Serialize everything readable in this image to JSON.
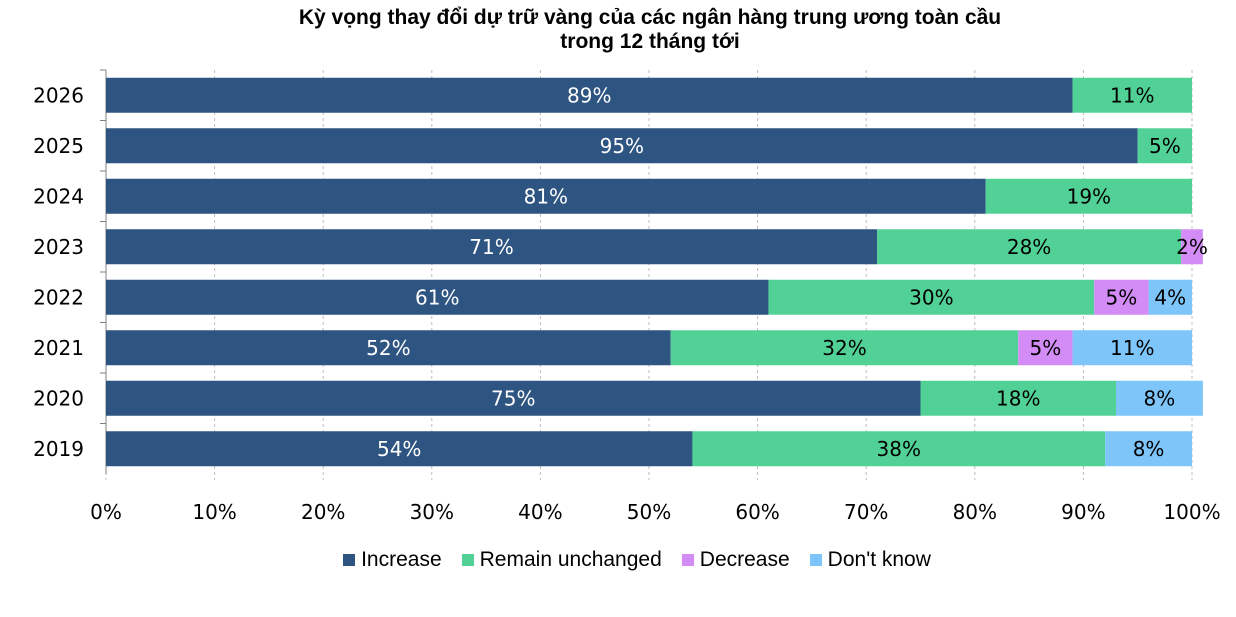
{
  "chart_data": {
    "type": "bar",
    "orientation": "horizontal",
    "stacked": true,
    "title_line1": "Kỳ vọng thay đổi dự trữ vàng của các ngân hàng trung ương toàn cầu",
    "title_line2": "trong 12 tháng tới",
    "xlabel": "",
    "ylabel": "",
    "xlim": [
      0,
      100
    ],
    "x_ticks": [
      "0%",
      "10%",
      "20%",
      "30%",
      "40%",
      "50%",
      "60%",
      "70%",
      "80%",
      "90%",
      "100%"
    ],
    "grid": "vertical",
    "legend_position": "bottom",
    "categories": [
      "2026",
      "2025",
      "2024",
      "2023",
      "2022",
      "2021",
      "2020",
      "2019"
    ],
    "series": [
      {
        "name": "Increase",
        "color": "#2e5481",
        "values": [
          89,
          95,
          81,
          71,
          61,
          52,
          75,
          54
        ],
        "labels": [
          "89%",
          "95%",
          "81%",
          "71%",
          "61%",
          "52%",
          "75%",
          "54%"
        ]
      },
      {
        "name": "Remain unchanged",
        "color": "#52d196",
        "values": [
          11,
          5,
          19,
          28,
          30,
          32,
          18,
          38
        ],
        "labels": [
          "11%",
          "5%",
          "19%",
          "28%",
          "30%",
          "32%",
          "18%",
          "38%"
        ]
      },
      {
        "name": "Decrease",
        "color": "#d38cf5",
        "values": [
          0,
          0,
          0,
          2,
          5,
          5,
          0,
          0
        ],
        "labels": [
          "",
          "",
          "",
          "2%",
          "5%",
          "5%",
          "",
          ""
        ]
      },
      {
        "name": "Don't know",
        "color": "#7ec6fa",
        "values": [
          0,
          0,
          0,
          0,
          4,
          11,
          8,
          8
        ],
        "labels": [
          "",
          "",
          "",
          "",
          "4%",
          "11%",
          "8%",
          "8%"
        ]
      }
    ]
  }
}
